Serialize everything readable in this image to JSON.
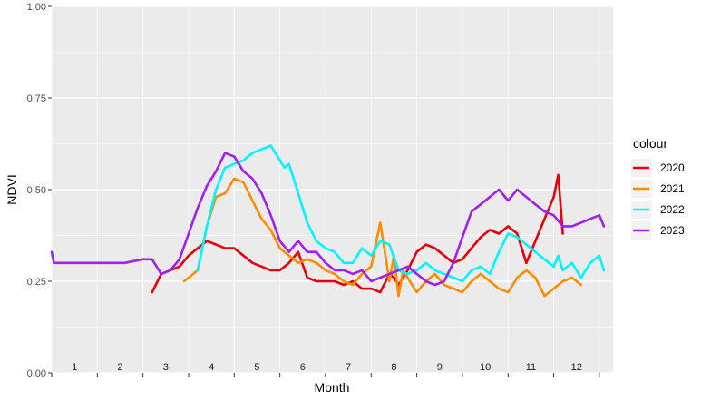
{
  "chart_data": {
    "type": "line",
    "xlabel": "Month",
    "ylabel": "NDVI",
    "xlim": [
      0,
      12.3
    ],
    "ylim": [
      0,
      1
    ],
    "y_ticks": [
      "0.00",
      "0.25",
      "0.50",
      "0.75",
      "1.00"
    ],
    "y_tick_values": [
      0,
      0.25,
      0.5,
      0.75,
      1
    ],
    "month_labels": [
      "1",
      "2",
      "3",
      "4",
      "5",
      "6",
      "7",
      "8",
      "9",
      "10",
      "11",
      "12"
    ],
    "grid": true,
    "legend_title": "colour",
    "legend_position": "right",
    "series": [
      {
        "name": "2020",
        "color": "#e8000b",
        "x": [
          2.2,
          2.4,
          2.6,
          2.8,
          3.0,
          3.2,
          3.4,
          3.6,
          3.8,
          4.0,
          4.2,
          4.4,
          4.6,
          4.8,
          5.0,
          5.2,
          5.4,
          5.6,
          5.8,
          6.0,
          6.2,
          6.4,
          6.6,
          6.8,
          7.0,
          7.2,
          7.4,
          7.5,
          7.6,
          7.8,
          8.0,
          8.2,
          8.4,
          8.6,
          8.8,
          9.0,
          9.2,
          9.4,
          9.6,
          9.8,
          10.0,
          10.2,
          10.4,
          10.6,
          10.8,
          11.0,
          11.1,
          11.2
        ],
        "y": [
          0.22,
          0.27,
          0.28,
          0.29,
          0.32,
          0.34,
          0.36,
          0.35,
          0.34,
          0.34,
          0.32,
          0.3,
          0.29,
          0.28,
          0.28,
          0.3,
          0.33,
          0.26,
          0.25,
          0.25,
          0.25,
          0.24,
          0.25,
          0.23,
          0.23,
          0.22,
          0.27,
          0.26,
          0.24,
          0.28,
          0.33,
          0.35,
          0.34,
          0.32,
          0.3,
          0.31,
          0.34,
          0.37,
          0.39,
          0.38,
          0.4,
          0.38,
          0.3,
          0.36,
          0.42,
          0.48,
          0.54,
          0.38
        ]
      },
      {
        "name": "2021",
        "color": "#ff8c00",
        "x": [
          2.9,
          3.0,
          3.2,
          3.4,
          3.6,
          3.8,
          4.0,
          4.2,
          4.4,
          4.6,
          4.8,
          5.0,
          5.2,
          5.4,
          5.6,
          5.8,
          6.0,
          6.2,
          6.4,
          6.6,
          6.8,
          7.0,
          7.2,
          7.4,
          7.5,
          7.6,
          7.7,
          7.8,
          8.0,
          8.2,
          8.4,
          8.6,
          8.8,
          9.0,
          9.2,
          9.4,
          9.6,
          9.8,
          10.0,
          10.2,
          10.4,
          10.6,
          10.8,
          11.0,
          11.2,
          11.4,
          11.6
        ],
        "y": [
          0.25,
          0.26,
          0.28,
          0.4,
          0.48,
          0.49,
          0.53,
          0.52,
          0.47,
          0.42,
          0.39,
          0.34,
          0.32,
          0.3,
          0.31,
          0.3,
          0.28,
          0.27,
          0.25,
          0.24,
          0.27,
          0.29,
          0.41,
          0.25,
          0.32,
          0.21,
          0.28,
          0.26,
          0.22,
          0.25,
          0.27,
          0.24,
          0.23,
          0.22,
          0.25,
          0.27,
          0.25,
          0.23,
          0.22,
          0.26,
          0.28,
          0.26,
          0.21,
          0.23,
          0.25,
          0.26,
          0.24
        ]
      },
      {
        "name": "2022",
        "color": "#00f5ff",
        "x": [
          3.2,
          3.4,
          3.6,
          3.8,
          4.0,
          4.2,
          4.4,
          4.6,
          4.8,
          5.0,
          5.1,
          5.2,
          5.4,
          5.6,
          5.8,
          6.0,
          6.2,
          6.4,
          6.6,
          6.8,
          7.0,
          7.2,
          7.4,
          7.6,
          7.8,
          8.0,
          8.2,
          8.4,
          8.6,
          8.8,
          9.0,
          9.2,
          9.4,
          9.6,
          9.8,
          10.0,
          10.2,
          10.4,
          10.6,
          10.8,
          11.0,
          11.1,
          11.2,
          11.4,
          11.6,
          11.8,
          12.0,
          12.1
        ],
        "y": [
          0.28,
          0.4,
          0.5,
          0.56,
          0.57,
          0.58,
          0.6,
          0.61,
          0.62,
          0.58,
          0.56,
          0.57,
          0.49,
          0.41,
          0.36,
          0.34,
          0.33,
          0.3,
          0.3,
          0.34,
          0.32,
          0.36,
          0.35,
          0.28,
          0.27,
          0.28,
          0.3,
          0.28,
          0.27,
          0.26,
          0.25,
          0.28,
          0.29,
          0.27,
          0.33,
          0.38,
          0.37,
          0.35,
          0.33,
          0.31,
          0.29,
          0.32,
          0.28,
          0.3,
          0.26,
          0.3,
          0.32,
          0.28
        ]
      },
      {
        "name": "2023",
        "color": "#a020f0",
        "x": [
          0.0,
          0.05,
          0.4,
          0.8,
          1.2,
          1.6,
          2.0,
          2.2,
          2.4,
          2.6,
          2.8,
          3.0,
          3.2,
          3.4,
          3.6,
          3.8,
          4.0,
          4.2,
          4.4,
          4.6,
          4.8,
          5.0,
          5.2,
          5.4,
          5.6,
          5.8,
          6.0,
          6.2,
          6.4,
          6.6,
          6.8,
          7.0,
          7.2,
          7.4,
          7.6,
          7.8,
          8.0,
          8.2,
          8.4,
          8.6,
          8.8,
          9.0,
          9.2,
          9.4,
          9.6,
          9.8,
          10.0,
          10.2,
          10.4,
          10.6,
          10.8,
          11.0,
          11.2,
          11.4,
          11.6,
          11.8,
          12.0,
          12.1
        ],
        "y": [
          0.33,
          0.3,
          0.3,
          0.3,
          0.3,
          0.3,
          0.31,
          0.31,
          0.27,
          0.28,
          0.31,
          0.38,
          0.45,
          0.51,
          0.55,
          0.6,
          0.59,
          0.55,
          0.53,
          0.49,
          0.43,
          0.36,
          0.33,
          0.36,
          0.33,
          0.33,
          0.3,
          0.28,
          0.28,
          0.27,
          0.28,
          0.25,
          0.26,
          0.27,
          0.28,
          0.29,
          0.27,
          0.25,
          0.24,
          0.25,
          0.3,
          0.37,
          0.44,
          0.46,
          0.48,
          0.5,
          0.47,
          0.5,
          0.48,
          0.46,
          0.44,
          0.43,
          0.4,
          0.4,
          0.41,
          0.42,
          0.43,
          0.4
        ]
      }
    ]
  }
}
